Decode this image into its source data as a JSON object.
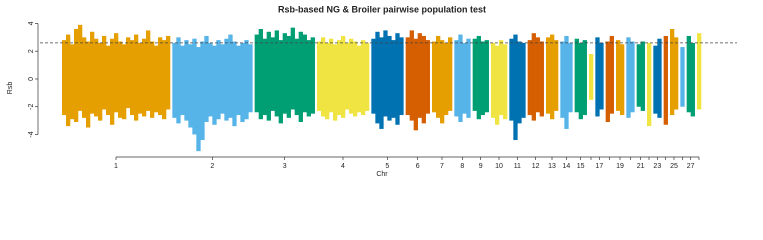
{
  "chart_data": {
    "type": "manhattan",
    "title": "Rsb-based NG & Broiler pairwise population test",
    "xlabel": "Chr",
    "ylabel": "Rsb",
    "ylim": [
      -5.5,
      4.3
    ],
    "yticks": [
      -4,
      -2,
      0,
      2,
      4
    ],
    "threshold": 2.6,
    "threshold_color": "#444444",
    "chromosomes": [
      {
        "name": "1",
        "color": "#E69F00",
        "high": [
          2.8,
          3.2,
          2.5,
          3.6,
          3.9,
          3.0,
          2.7,
          3.4,
          2.9,
          2.6,
          3.1,
          2.4,
          2.9,
          3.3,
          2.7,
          2.5,
          3.0,
          2.8,
          3.2,
          2.6,
          2.9,
          3.5,
          2.7,
          2.4,
          3.0,
          2.8,
          3.1
        ],
        "low": [
          -2.6,
          -3.4,
          -2.9,
          -3.1,
          -2.3,
          -2.8,
          -3.5,
          -2.5,
          -2.7,
          -3.0,
          -2.2,
          -2.6,
          -3.3,
          -2.4,
          -2.8,
          -2.9,
          -2.1,
          -2.6,
          -3.0,
          -2.5,
          -2.7,
          -2.3,
          -2.8,
          -2.4,
          -2.6,
          -2.9,
          -2.2
        ]
      },
      {
        "name": "2",
        "color": "#56B4E9",
        "high": [
          2.6,
          3.0,
          2.4,
          2.8,
          2.5,
          2.9,
          2.3,
          2.7,
          3.1,
          2.6,
          2.4,
          2.8,
          2.5,
          2.9,
          3.2,
          2.7,
          2.4,
          2.6,
          2.8,
          2.5
        ],
        "low": [
          -2.8,
          -3.2,
          -2.6,
          -3.0,
          -3.5,
          -4.0,
          -5.2,
          -4.4,
          -3.1,
          -2.7,
          -3.3,
          -2.9,
          -2.5,
          -3.0,
          -2.8,
          -3.4,
          -2.6,
          -3.1,
          -2.9,
          -2.4
        ]
      },
      {
        "name": "3",
        "color": "#009E73",
        "high": [
          3.2,
          3.6,
          2.9,
          3.4,
          3.0,
          3.5,
          2.8,
          3.3,
          3.1,
          3.7,
          2.9,
          3.4,
          3.2,
          2.8,
          3.0
        ],
        "low": [
          -2.4,
          -2.9,
          -2.6,
          -3.0,
          -2.3,
          -2.7,
          -3.2,
          -2.5,
          -2.8,
          -2.2,
          -2.6,
          -3.1,
          -2.4,
          -2.7,
          -2.5
        ]
      },
      {
        "name": "4",
        "color": "#F0E442",
        "high": [
          2.7,
          3.0,
          2.6,
          2.9,
          2.5,
          2.8,
          3.1,
          2.6,
          2.9,
          2.7,
          2.4,
          2.8,
          2.6
        ],
        "low": [
          -2.3,
          -2.7,
          -2.9,
          -2.4,
          -3.0,
          -2.6,
          -2.8,
          -2.2,
          -2.5,
          -2.7,
          -2.4,
          -2.6,
          -2.3
        ]
      },
      {
        "name": "5",
        "color": "#0072B2",
        "high": [
          2.9,
          3.4,
          3.0,
          3.5,
          3.1,
          2.8,
          3.3,
          3.0
        ],
        "low": [
          -2.5,
          -3.2,
          -3.6,
          -2.7,
          -3.0,
          -2.8,
          -3.3,
          -2.6
        ]
      },
      {
        "name": "6",
        "color": "#D55E00",
        "high": [
          3.0,
          3.5,
          2.9,
          3.3,
          3.1,
          2.8
        ],
        "low": [
          -2.6,
          -3.0,
          -3.7,
          -2.8,
          -3.2,
          -2.5
        ]
      },
      {
        "name": "7",
        "color": "#E69F00",
        "high": [
          2.7,
          3.1,
          2.8,
          2.6,
          3.0
        ],
        "low": [
          -2.4,
          -2.8,
          -3.2,
          -2.6,
          -2.3
        ]
      },
      {
        "name": "8",
        "color": "#56B4E9",
        "high": [
          2.8,
          3.2,
          2.6,
          2.9
        ],
        "low": [
          -2.7,
          -3.1,
          -2.5,
          -2.8
        ]
      },
      {
        "name": "9",
        "color": "#009E73",
        "high": [
          2.9,
          3.1,
          2.7,
          2.8
        ],
        "low": [
          -2.3,
          -2.9,
          -2.6,
          -2.4
        ]
      },
      {
        "name": "10",
        "color": "#F0E442",
        "high": [
          2.6,
          2.4,
          2.8,
          2.5
        ],
        "low": [
          -2.8,
          -3.3,
          -2.6,
          -2.9
        ]
      },
      {
        "name": "11",
        "color": "#0072B2",
        "high": [
          2.9,
          3.2,
          2.7,
          2.6
        ],
        "low": [
          -3.0,
          -4.4,
          -3.2,
          -2.8
        ]
      },
      {
        "name": "12",
        "color": "#D55E00",
        "high": [
          2.8,
          3.3,
          3.0,
          2.7
        ],
        "low": [
          -2.6,
          -3.0,
          -2.4,
          -2.7
        ]
      },
      {
        "name": "13",
        "color": "#E69F00",
        "high": [
          3.0,
          3.2,
          2.8
        ],
        "low": [
          -2.5,
          -2.9,
          -2.3
        ]
      },
      {
        "name": "14",
        "color": "#56B4E9",
        "high": [
          2.7,
          3.1,
          2.6
        ],
        "low": [
          -2.8,
          -3.6,
          -2.4
        ]
      },
      {
        "name": "15",
        "color": "#009E73",
        "high": [
          2.9,
          2.6,
          2.8
        ],
        "low": [
          -2.4,
          -2.9,
          -2.6
        ]
      },
      {
        "name": null,
        "color": "#F0E442",
        "high": [
          1.8
        ],
        "low": [
          -1.5
        ]
      },
      {
        "name": "17",
        "color": "#0072B2",
        "high": [
          3.0,
          2.6
        ],
        "low": [
          -2.7,
          -2.2
        ]
      },
      {
        "name": null,
        "color": "#D55E00",
        "high": [
          2.7,
          3.1
        ],
        "low": [
          -3.1,
          -2.5
        ]
      },
      {
        "name": "19",
        "color": "#E69F00",
        "high": [
          2.8,
          2.5
        ],
        "low": [
          -2.3,
          -2.6
        ]
      },
      {
        "name": null,
        "color": "#56B4E9",
        "high": [
          3.0,
          2.7
        ],
        "low": [
          -2.8,
          -2.4
        ]
      },
      {
        "name": "21",
        "color": "#009E73",
        "high": [
          2.5,
          2.7
        ],
        "low": [
          -2.0,
          -2.3
        ]
      },
      {
        "name": null,
        "color": "#F0E442",
        "high": [
          2.6
        ],
        "low": [
          -3.4
        ]
      },
      {
        "name": "23",
        "color": "#0072B2",
        "high": [
          2.4,
          2.9
        ],
        "low": [
          -2.5,
          -2.8
        ]
      },
      {
        "name": null,
        "color": "#D55E00",
        "high": [
          3.1
        ],
        "low": [
          -3.3
        ]
      },
      {
        "name": "25",
        "color": "#E69F00",
        "high": [
          3.6,
          3.0
        ],
        "low": [
          -2.6,
          -2.2
        ]
      },
      {
        "name": null,
        "color": "#56B4E9",
        "high": [
          2.3
        ],
        "low": [
          -2.0
        ]
      },
      {
        "name": "27",
        "color": "#009E73",
        "high": [
          3.1,
          2.6
        ],
        "low": [
          -2.4,
          -2.7
        ]
      },
      {
        "name": null,
        "color": "#F0E442",
        "high": [
          3.3
        ],
        "low": [
          -2.2
        ]
      }
    ]
  }
}
